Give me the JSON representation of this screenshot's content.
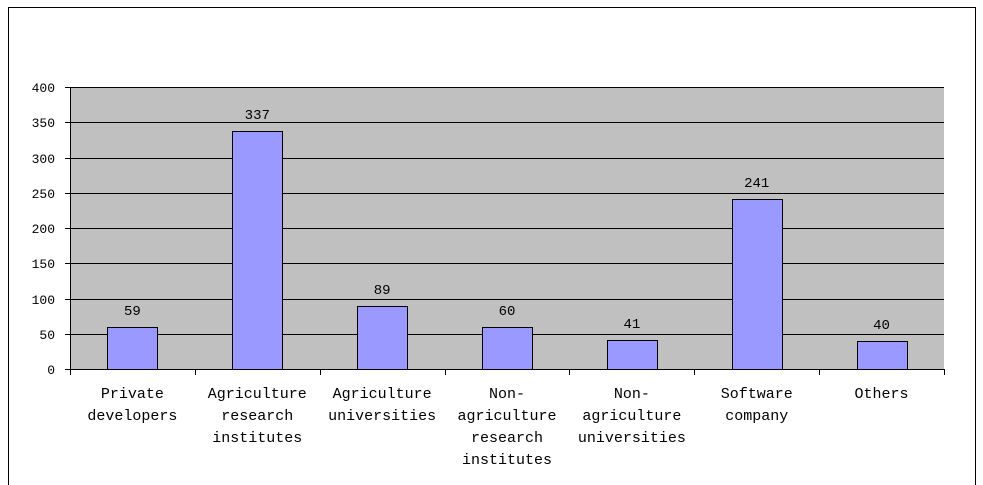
{
  "chart_data": {
    "type": "bar",
    "categories": [
      "Private developers",
      "Agriculture research institutes",
      "Agriculture universities",
      "Non-agriculture research institutes",
      "Non-agriculture universities",
      "Software company",
      "Others"
    ],
    "values": [
      59,
      337,
      89,
      60,
      41,
      241,
      40
    ],
    "data_labels": true,
    "ylim": [
      0,
      400
    ],
    "y_ticks": [
      0,
      50,
      100,
      150,
      200,
      250,
      300,
      350,
      400
    ],
    "grid": true,
    "legend": false,
    "colors": {
      "bar": "#9999FF",
      "bar_border": "#000000",
      "plot_background": "#C0C0C0",
      "gridline": "#000000"
    }
  }
}
